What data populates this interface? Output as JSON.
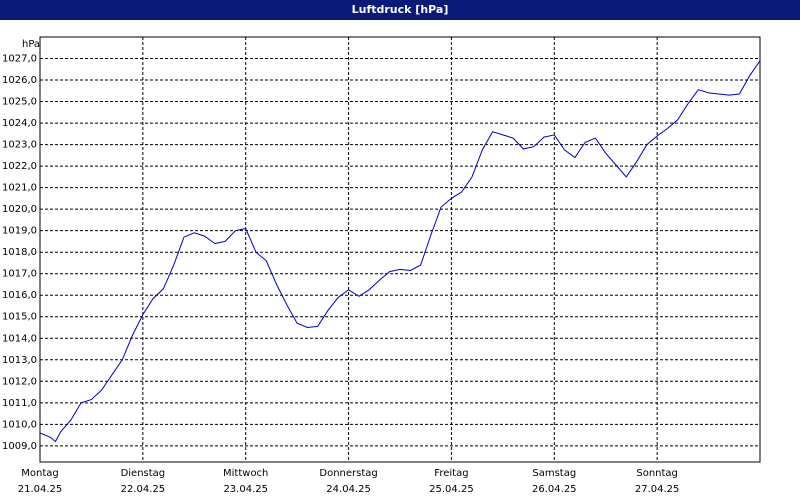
{
  "chart_data": {
    "type": "line",
    "title": "Luftdruck [hPa]",
    "y_label": "hPa",
    "color": "#0000c8",
    "grid": true,
    "xlim": [
      0,
      7
    ],
    "ylim": [
      1008.25,
      1028
    ],
    "xticks": [
      {
        "value": 0,
        "label": [
          "Montag",
          "21.04.25"
        ]
      },
      {
        "value": 1,
        "label": [
          "Dienstag",
          "22.04.25"
        ]
      },
      {
        "value": 2,
        "label": [
          "Mittwoch",
          "23.04.25"
        ]
      },
      {
        "value": 3,
        "label": [
          "Donnerstag",
          "24.04.25"
        ]
      },
      {
        "value": 4,
        "label": [
          "Freitag",
          "25.04.25"
        ]
      },
      {
        "value": 5,
        "label": [
          "Samstag",
          "26.04.25"
        ]
      },
      {
        "value": 6,
        "label": [
          "Sonntag",
          "27.04.25"
        ]
      }
    ],
    "yticks": [
      {
        "value": 1009,
        "label": "1009,0"
      },
      {
        "value": 1010,
        "label": "1010,0"
      },
      {
        "value": 1011,
        "label": "1011,0"
      },
      {
        "value": 1012,
        "label": "1012,0"
      },
      {
        "value": 1013,
        "label": "1013,0"
      },
      {
        "value": 1014,
        "label": "1014,0"
      },
      {
        "value": 1015,
        "label": "1015,0"
      },
      {
        "value": 1016,
        "label": "1016,0"
      },
      {
        "value": 1017,
        "label": "1017,0"
      },
      {
        "value": 1018,
        "label": "1018,0"
      },
      {
        "value": 1019,
        "label": "1019,0"
      },
      {
        "value": 1020,
        "label": "1020,0"
      },
      {
        "value": 1021,
        "label": "1021,0"
      },
      {
        "value": 1022,
        "label": "1022,0"
      },
      {
        "value": 1023,
        "label": "1023,0"
      },
      {
        "value": 1024,
        "label": "1024,0"
      },
      {
        "value": 1025,
        "label": "1025,0"
      },
      {
        "value": 1026,
        "label": "1026,0"
      },
      {
        "value": 1027,
        "label": "1027,0"
      }
    ],
    "x": [
      0,
      0.1,
      0.15,
      0.2,
      0.3,
      0.4,
      0.5,
      0.6,
      0.7,
      0.8,
      0.9,
      1.0,
      1.1,
      1.2,
      1.3,
      1.4,
      1.5,
      1.6,
      1.7,
      1.8,
      1.9,
      2.0,
      2.1,
      2.2,
      2.3,
      2.4,
      2.5,
      2.6,
      2.7,
      2.8,
      2.9,
      3.0,
      3.1,
      3.2,
      3.3,
      3.4,
      3.5,
      3.6,
      3.7,
      3.8,
      3.9,
      4.0,
      4.1,
      4.2,
      4.3,
      4.4,
      4.5,
      4.6,
      4.7,
      4.8,
      4.9,
      5.0,
      5.1,
      5.2,
      5.3,
      5.4,
      5.5,
      5.6,
      5.7,
      5.8,
      5.9,
      6.0,
      6.1,
      6.2,
      6.3,
      6.4,
      6.5,
      6.6,
      6.7,
      6.8,
      6.9,
      7.0
    ],
    "values": [
      1009.6,
      1009.4,
      1009.2,
      1009.65,
      1010.2,
      1011.0,
      1011.15,
      1011.6,
      1012.3,
      1013.0,
      1014.15,
      1015.1,
      1015.85,
      1016.3,
      1017.4,
      1018.7,
      1018.9,
      1018.75,
      1018.4,
      1018.5,
      1019.0,
      1019.1,
      1018.0,
      1017.6,
      1016.5,
      1015.55,
      1014.7,
      1014.5,
      1014.55,
      1015.3,
      1015.9,
      1016.25,
      1015.95,
      1016.25,
      1016.7,
      1017.1,
      1017.2,
      1017.15,
      1017.4,
      1018.8,
      1020.1,
      1020.5,
      1020.8,
      1021.5,
      1022.75,
      1023.6,
      1023.45,
      1023.3,
      1022.8,
      1022.9,
      1023.35,
      1023.45,
      1022.75,
      1022.4,
      1023.1,
      1023.3,
      1022.6,
      1022.05,
      1021.5,
      1022.2,
      1023.0,
      1023.4,
      1023.75,
      1024.15,
      1024.9,
      1025.55,
      1025.4,
      1025.35,
      1025.3,
      1025.35,
      1026.2,
      1026.9
    ]
  }
}
